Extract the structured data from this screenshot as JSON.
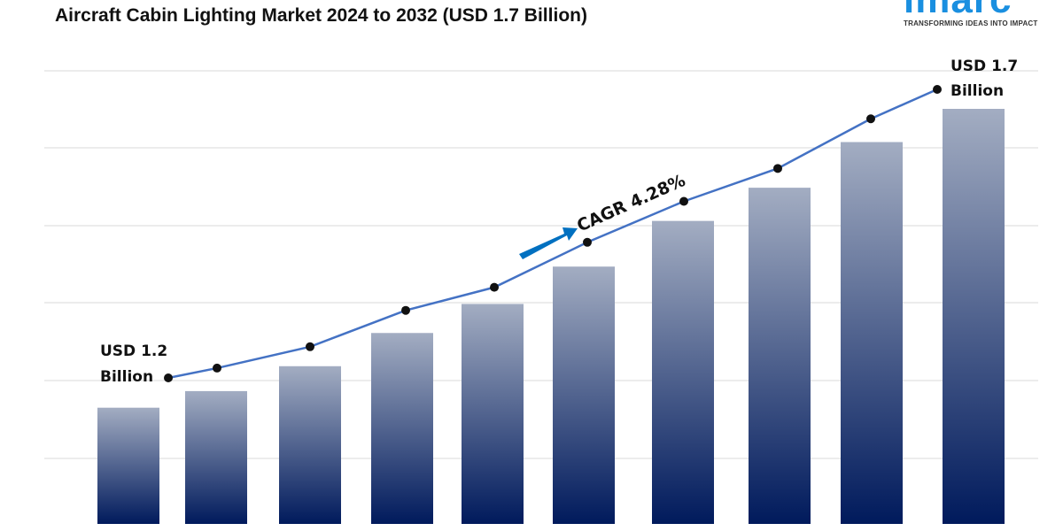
{
  "title": "Aircraft Cabin Lighting Market 2024 to 2032 (USD 1.7 Billion)",
  "logo": {
    "word": "imarc",
    "tagline": "TRANSFORMING IDEAS INTO IMPACT",
    "color": "#1a8fe0"
  },
  "chart_data": {
    "type": "bar+line",
    "title": "Aircraft Cabin Lighting Market 2024 to 2032 (USD 1.7 Billion)",
    "xlabel": "",
    "ylabel": "",
    "grid": true,
    "bars": {
      "relative_heights": [
        0.28,
        0.32,
        0.38,
        0.46,
        0.53,
        0.62,
        0.73,
        0.81,
        0.92,
        1.0
      ],
      "color_top": "#a3adc2",
      "color_bottom": "#001a5c"
    },
    "line": {
      "values": [
        1.2,
        1.217,
        1.254,
        1.317,
        1.357,
        1.435,
        1.506,
        1.563,
        1.649,
        1.7
      ],
      "unit": "USD Billion",
      "color": "#4472c4"
    },
    "annotations": {
      "start_label": [
        "USD 1.2",
        "Billion"
      ],
      "end_label": [
        "USD 1.7",
        "Billion"
      ],
      "cagr": "CAGR 4.28%",
      "arrow_color": "#0070c0"
    }
  }
}
